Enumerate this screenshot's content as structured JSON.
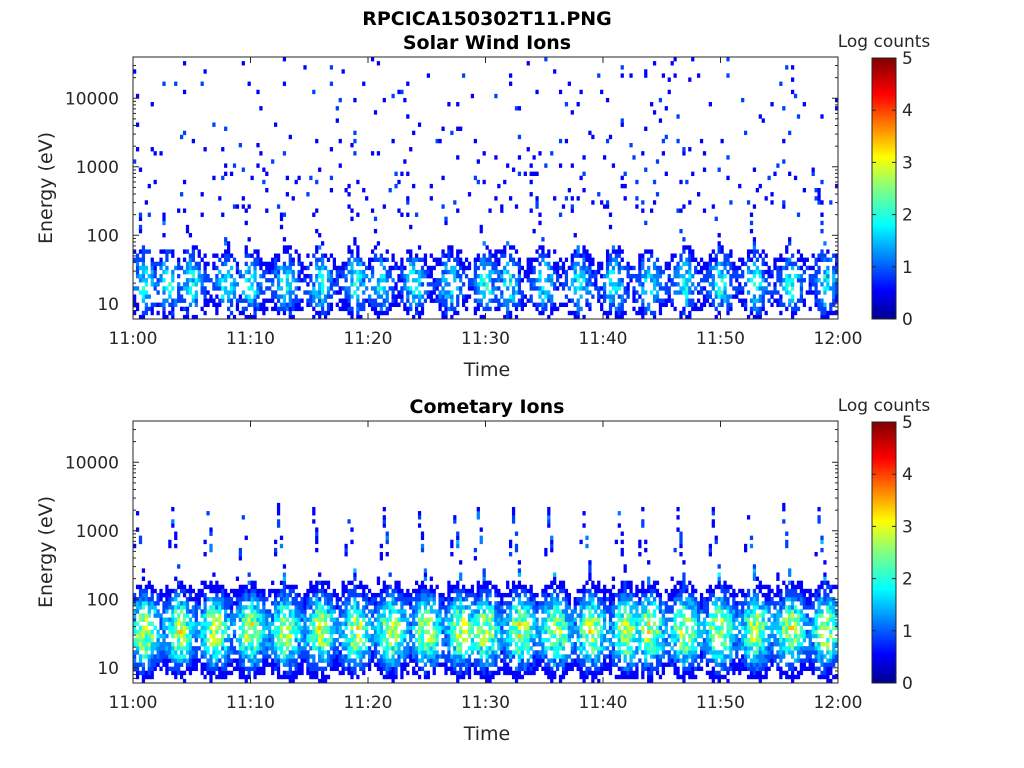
{
  "figure": {
    "title": "RPCICA150302T11.PNG"
  },
  "colors": [
    "#00008F",
    "#0000FF",
    "#0080FF",
    "#00FFFF",
    "#80FF80",
    "#FFFF00",
    "#FF8000",
    "#FF0000",
    "#800000"
  ],
  "chart_data": [
    {
      "type": "heatmap",
      "title": "Solar Wind Ions",
      "xlabel": "Time",
      "ylabel": "Energy (eV)",
      "x_ticks": [
        "11:00",
        "11:10",
        "11:20",
        "11:30",
        "11:40",
        "11:50",
        "12:00"
      ],
      "x_range": [
        "11:00",
        "12:00"
      ],
      "y_scale": "log",
      "y_ticks": [
        10,
        100,
        1000,
        10000
      ],
      "y_range": [
        6,
        40000
      ],
      "colorbar": {
        "label": "Log counts",
        "ticks": [
          0,
          1,
          2,
          3,
          4,
          5
        ],
        "range": [
          0,
          5
        ],
        "colormap": "jet"
      },
      "features": {
        "description_level": "summary",
        "pulse_times": [
          "11:01",
          "11:03",
          "11:05",
          "11:08",
          "11:10",
          "11:13",
          "11:16",
          "11:19",
          "11:21",
          "11:24",
          "11:27",
          "11:30",
          "11:32",
          "11:35",
          "11:38",
          "11:41",
          "11:44",
          "11:47",
          "11:50",
          "11:53",
          "11:56",
          "11:59"
        ],
        "core_energy_range": [
          10,
          40
        ],
        "peak_log_counts": 2.3
      }
    },
    {
      "type": "heatmap",
      "title": "Cometary Ions",
      "xlabel": "Time",
      "ylabel": "Energy (eV)",
      "x_ticks": [
        "11:00",
        "11:10",
        "11:20",
        "11:30",
        "11:40",
        "11:50",
        "12:00"
      ],
      "x_range": [
        "11:00",
        "12:00"
      ],
      "y_scale": "log",
      "y_ticks": [
        10,
        100,
        1000,
        10000
      ],
      "y_range": [
        6,
        40000
      ],
      "colorbar": {
        "label": "Log counts",
        "ticks": [
          0,
          1,
          2,
          3,
          4,
          5
        ],
        "range": [
          0,
          5
        ],
        "colormap": "jet"
      },
      "features": {
        "pulse_times": [
          "11:01",
          "11:04",
          "11:07",
          "11:10",
          "11:13",
          "11:16",
          "11:19",
          "11:22",
          "11:25",
          "11:28",
          "11:30",
          "11:33",
          "11:36",
          "11:39",
          "11:42",
          "11:44",
          "11:47",
          "11:50",
          "11:53",
          "11:56",
          "11:59"
        ],
        "core_energy_range": [
          15,
          80
        ],
        "peak_log_counts": 3.6
      }
    }
  ]
}
